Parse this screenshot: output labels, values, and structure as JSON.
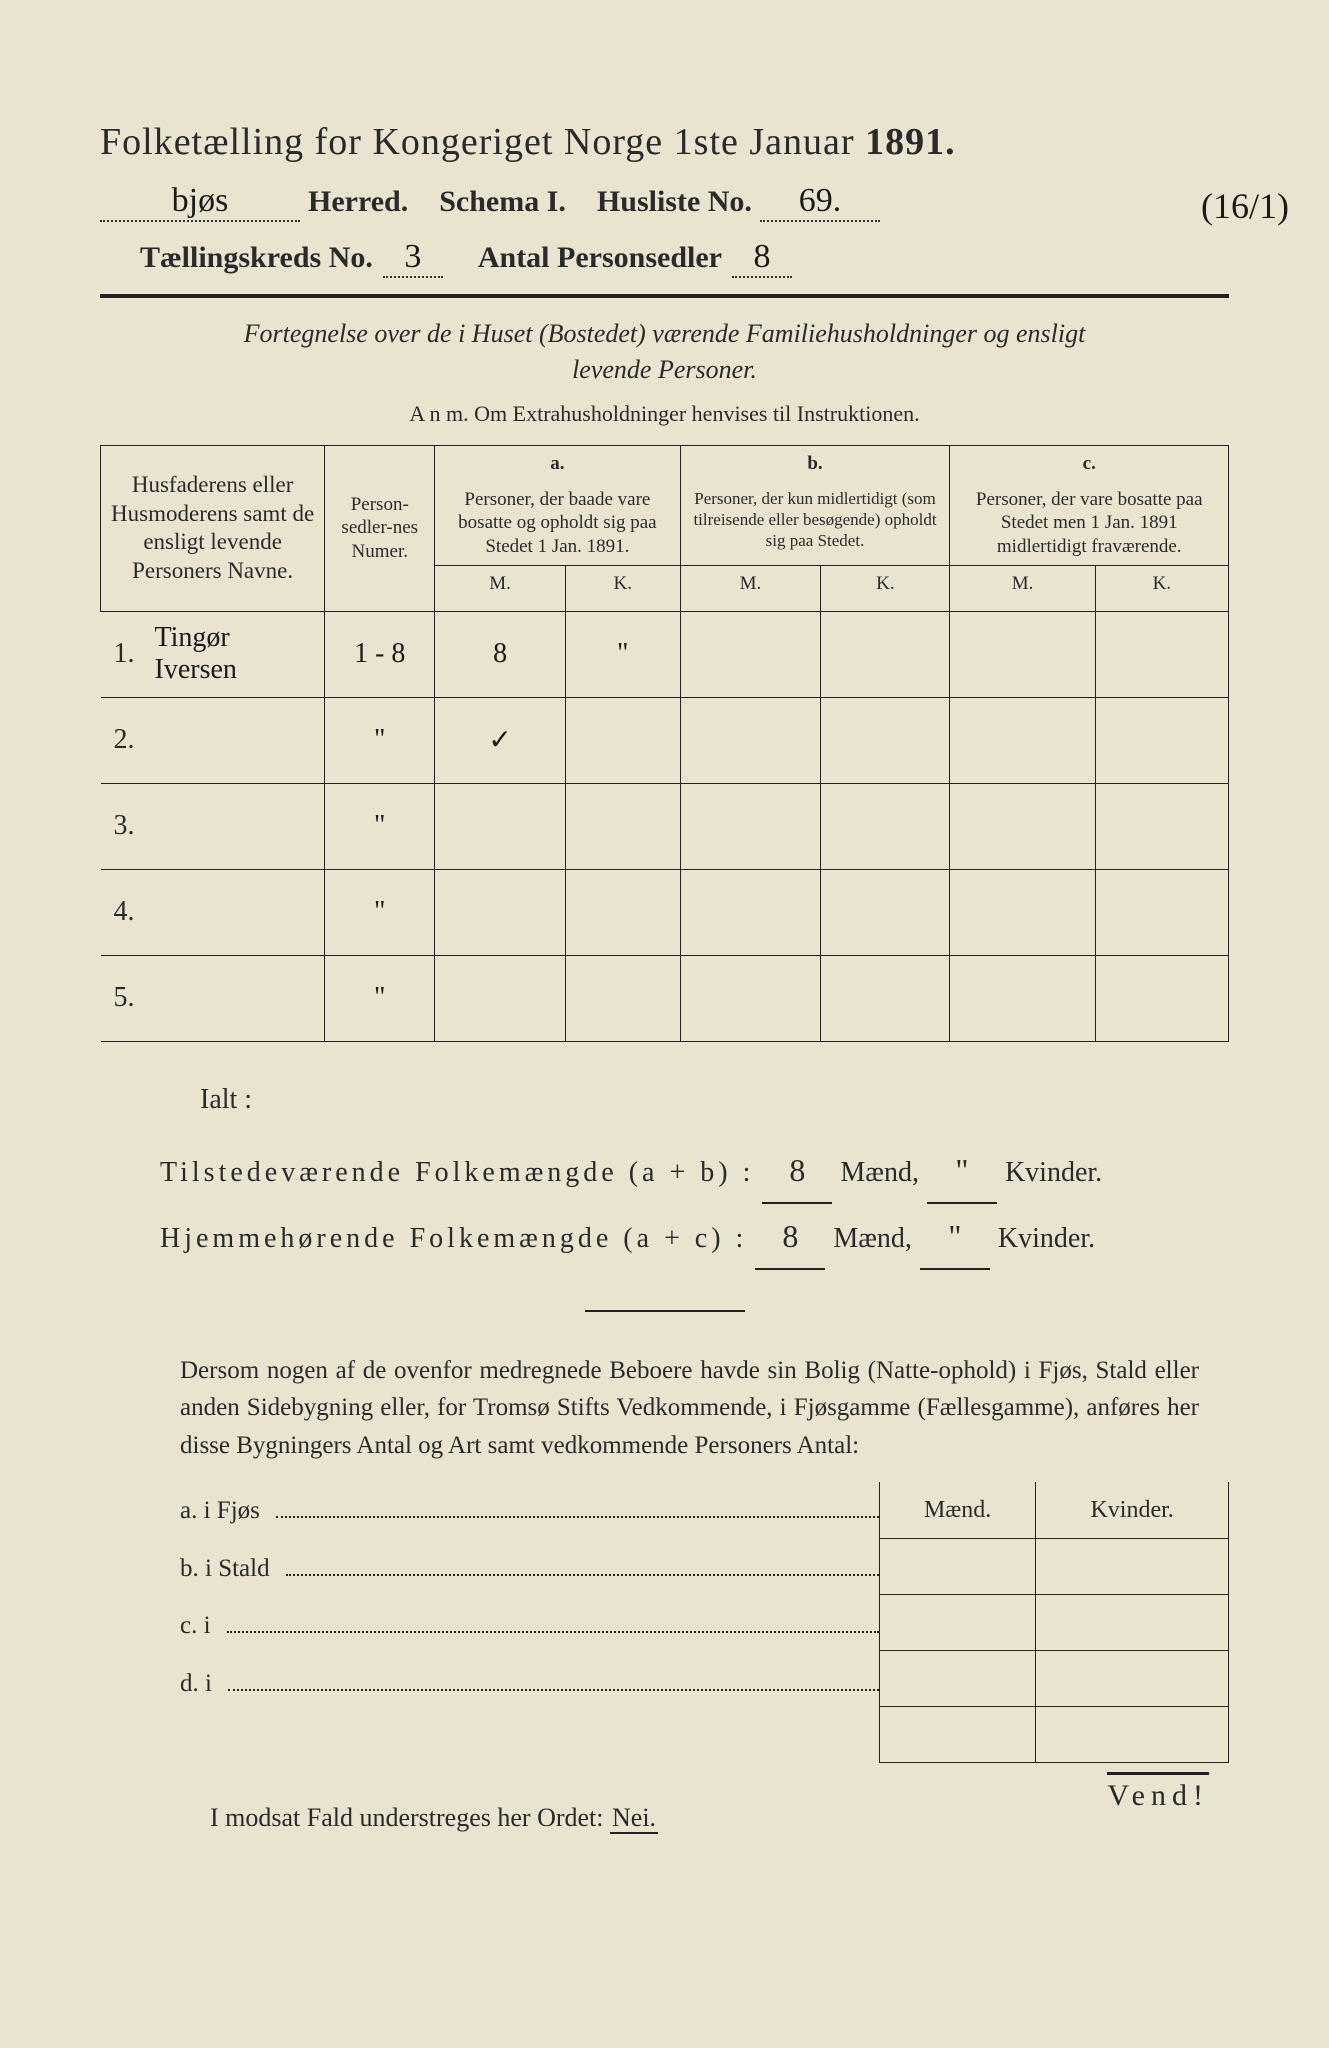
{
  "doc": {
    "title_prefix": "Folketælling for Kongeriget Norge 1ste Januar",
    "year": "1891.",
    "herred_value": "bjøs",
    "herred_label": "Herred.",
    "schema_label": "Schema I.",
    "husliste_label": "Husliste No.",
    "husliste_value": "69.",
    "margin_note": "(16/1)",
    "kreds_label": "Tællingskreds No.",
    "kreds_value": "3",
    "antal_label": "Antal Personsedler",
    "antal_value": "8",
    "fortegnelse_l1": "Fortegnelse over de i Huset (Bostedet) værende Familiehusholdninger og ensligt",
    "fortegnelse_l2": "levende Personer.",
    "anm": "A n m.  Om Extrahusholdninger henvises til Instruktionen."
  },
  "table": {
    "head_names": "Husfaderens eller Husmoderens samt de ensligt levende Personers Navne.",
    "head_numer": "Person-sedler-nes Numer.",
    "col_a": "a.",
    "col_a_text": "Personer, der baade vare bosatte og opholdt sig paa Stedet 1 Jan. 1891.",
    "col_b": "b.",
    "col_b_text": "Personer, der kun midlertidigt (som tilreisende eller besøgende) opholdt sig paa Stedet.",
    "col_c": "c.",
    "col_c_text": "Personer, der vare bosatte paa Stedet men 1 Jan. 1891 midlertidigt fraværende.",
    "M": "M.",
    "K": "K.",
    "rows": [
      {
        "n": "1.",
        "name": "Tingør Iversen",
        "numer": "1 - 8",
        "aM": "8",
        "aK": "\"",
        "bM": "",
        "bK": "",
        "cM": "",
        "cK": ""
      },
      {
        "n": "2.",
        "name": "",
        "numer": "\"",
        "aM": "✓",
        "aK": "",
        "bM": "",
        "bK": "",
        "cM": "",
        "cK": ""
      },
      {
        "n": "3.",
        "name": "",
        "numer": "\"",
        "aM": "",
        "aK": "",
        "bM": "",
        "bK": "",
        "cM": "",
        "cK": ""
      },
      {
        "n": "4.",
        "name": "",
        "numer": "\"",
        "aM": "",
        "aK": "",
        "bM": "",
        "bK": "",
        "cM": "",
        "cK": ""
      },
      {
        "n": "5.",
        "name": "",
        "numer": "\"",
        "aM": "",
        "aK": "",
        "bM": "",
        "bK": "",
        "cM": "",
        "cK": ""
      }
    ]
  },
  "totals": {
    "ialt": "Ialt :",
    "line1_label": "Tilstedeværende Folkemængde (a + b) :",
    "line2_label": "Hjemmehørende Folkemængde (a + c) :",
    "maend": "Mænd,",
    "kvinder": "Kvinder.",
    "line1_m": "8",
    "line1_k": "\"",
    "line2_m": "8",
    "line2_k": "\""
  },
  "para": {
    "text": "Dersom nogen af de ovenfor medregnede Beboere havde sin Bolig (Natte-ophold) i Fjøs, Stald eller anden Sidebygning eller, for Tromsø Stifts Vedkommende, i Fjøsgamme (Fællesgamme), anføres her disse Bygningers Antal og Art samt vedkommende Personers Antal:"
  },
  "list": {
    "a": "a.  i     Fjøs",
    "b": "b.  i     Stald",
    "c": "c.  i",
    "d": "d.  i",
    "maend": "Mænd.",
    "kvinder": "Kvinder."
  },
  "nei": {
    "text": "I modsat Fald understreges her Ordet:",
    "word": "Nei."
  },
  "vend": "Vend!"
}
